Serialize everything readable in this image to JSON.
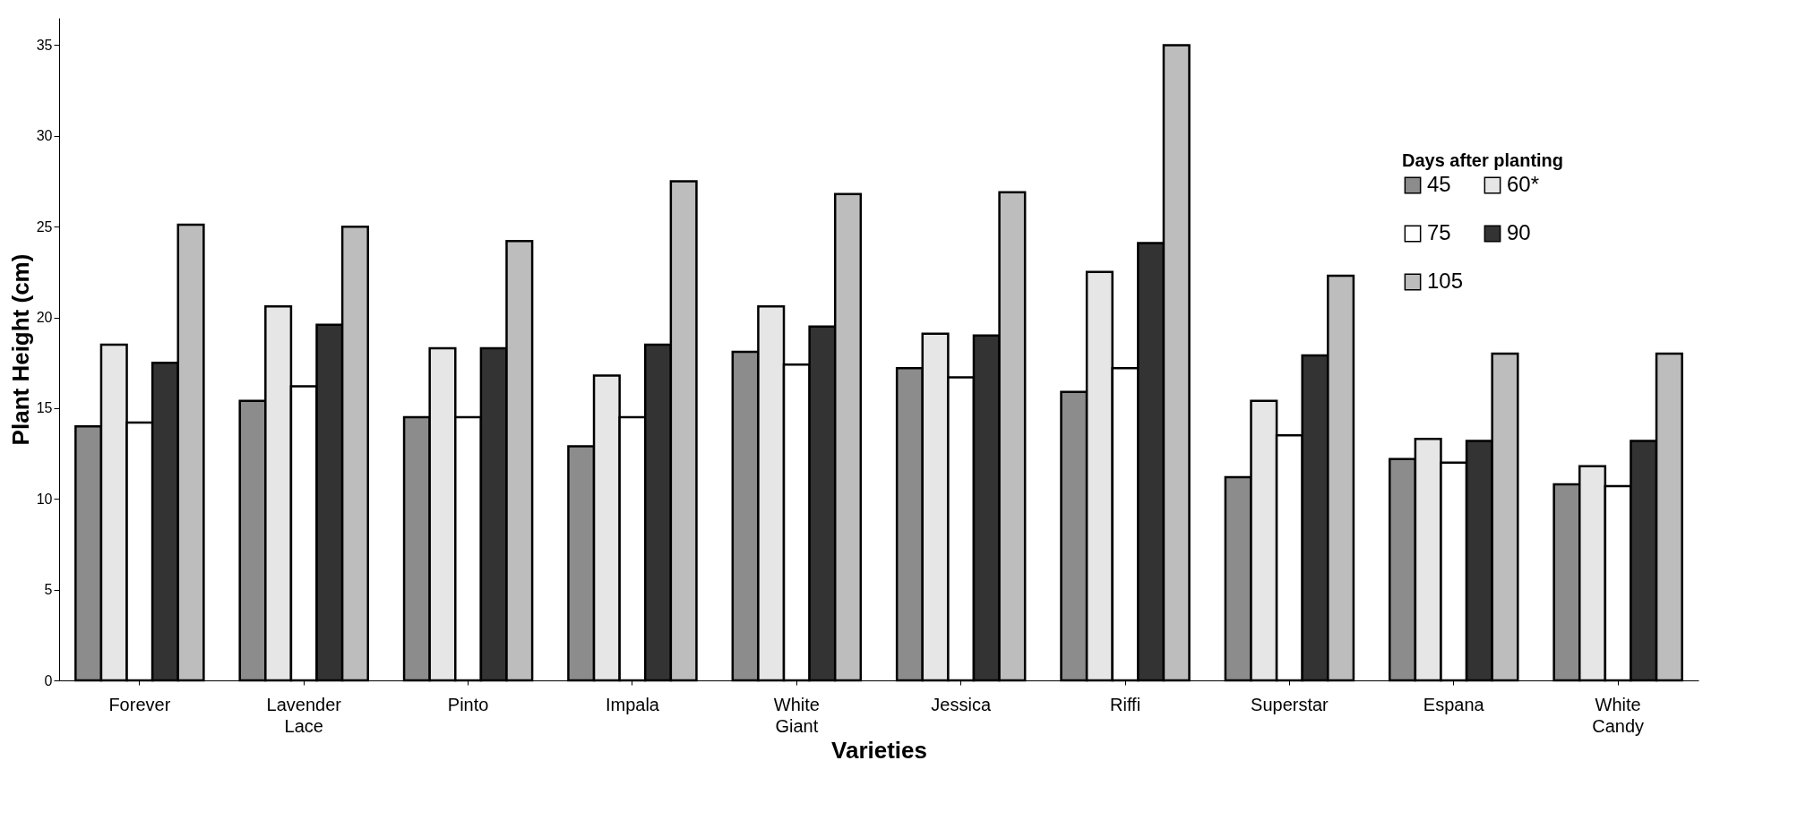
{
  "chart_data": {
    "type": "bar",
    "xlabel": "Varieties",
    "ylabel": "Plant Height (cm)",
    "legend_title": "Days after planting",
    "categories": [
      "Forever",
      "Lavender Lace",
      "Pinto",
      "Impala",
      "White Giant",
      "Jessica",
      "Riffi",
      "Superstar",
      "Espana",
      "White Candy"
    ],
    "series": [
      {
        "name": "45",
        "color": "#8c8c8c",
        "values": [
          14,
          15.4,
          14.5,
          12.9,
          18.1,
          17.2,
          15.9,
          11.2,
          12.2,
          10.8
        ]
      },
      {
        "name": "60*",
        "color": "#e6e6e6",
        "values": [
          18.5,
          20.6,
          18.3,
          16.8,
          20.6,
          19.1,
          22.5,
          15.4,
          13.3,
          11.8
        ]
      },
      {
        "name": "75",
        "color": "#ffffff",
        "values": [
          14.2,
          16.2,
          14.5,
          14.5,
          17.4,
          16.7,
          17.2,
          13.5,
          12,
          10.7
        ]
      },
      {
        "name": "90",
        "color": "#333333",
        "values": [
          17.5,
          19.6,
          18.3,
          18.5,
          19.5,
          19,
          24.1,
          17.9,
          13.2,
          13.2
        ]
      },
      {
        "name": "105",
        "color": "#bdbdbd",
        "values": [
          25.1,
          25,
          24.2,
          27.5,
          26.8,
          26.9,
          35,
          22.3,
          18,
          18
        ]
      }
    ],
    "ylim": [
      0,
      36.5
    ],
    "yticks": [
      0,
      5,
      10,
      15,
      20,
      25,
      30,
      35
    ],
    "grid": false,
    "legend": "top right"
  }
}
